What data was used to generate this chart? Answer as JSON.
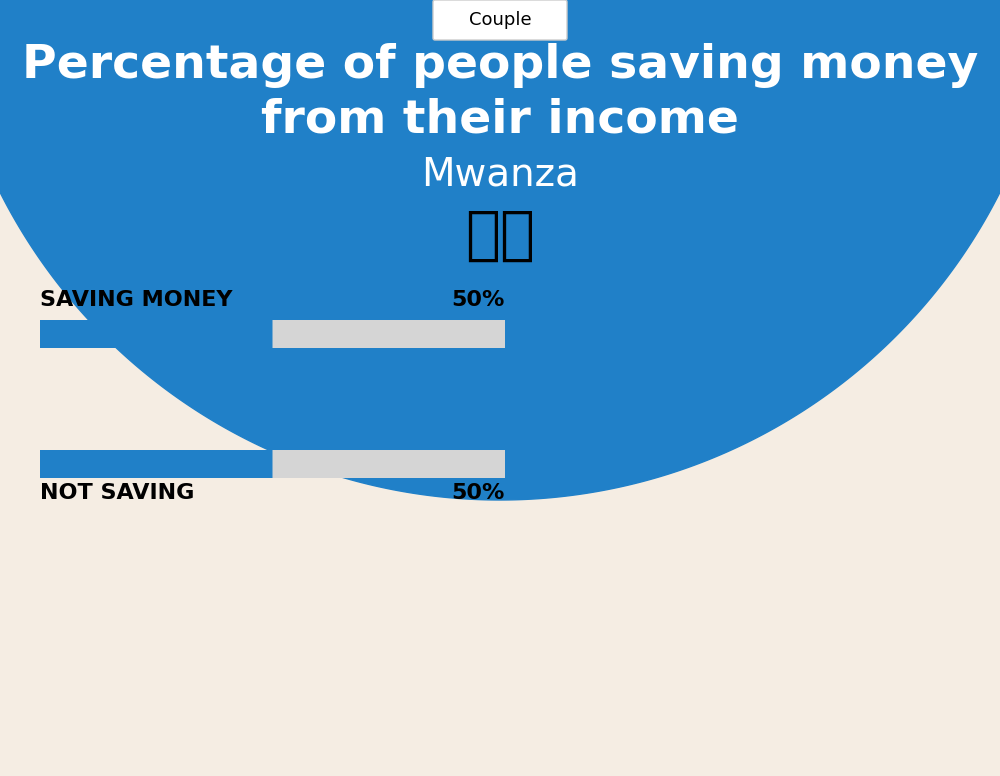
{
  "title_line1": "Percentage of people saving money",
  "title_line2": "from their income",
  "subtitle": "Mwanza",
  "tab_label": "Couple",
  "bg_color": "#F5EDE3",
  "circle_color": "#2080C8",
  "bar_blue": "#2080C8",
  "bar_gray": "#D5D5D5",
  "label1": "SAVING MONEY",
  "value1": 50,
  "label2": "NOT SAVING",
  "value2": 50,
  "bar_max": 100,
  "text_color": "#000000",
  "title_color": "#FFFFFF",
  "subtitle_color": "#FFFFFF",
  "flag_emoji": "🇹🇿",
  "tab_border_color": "#CCCCCC"
}
